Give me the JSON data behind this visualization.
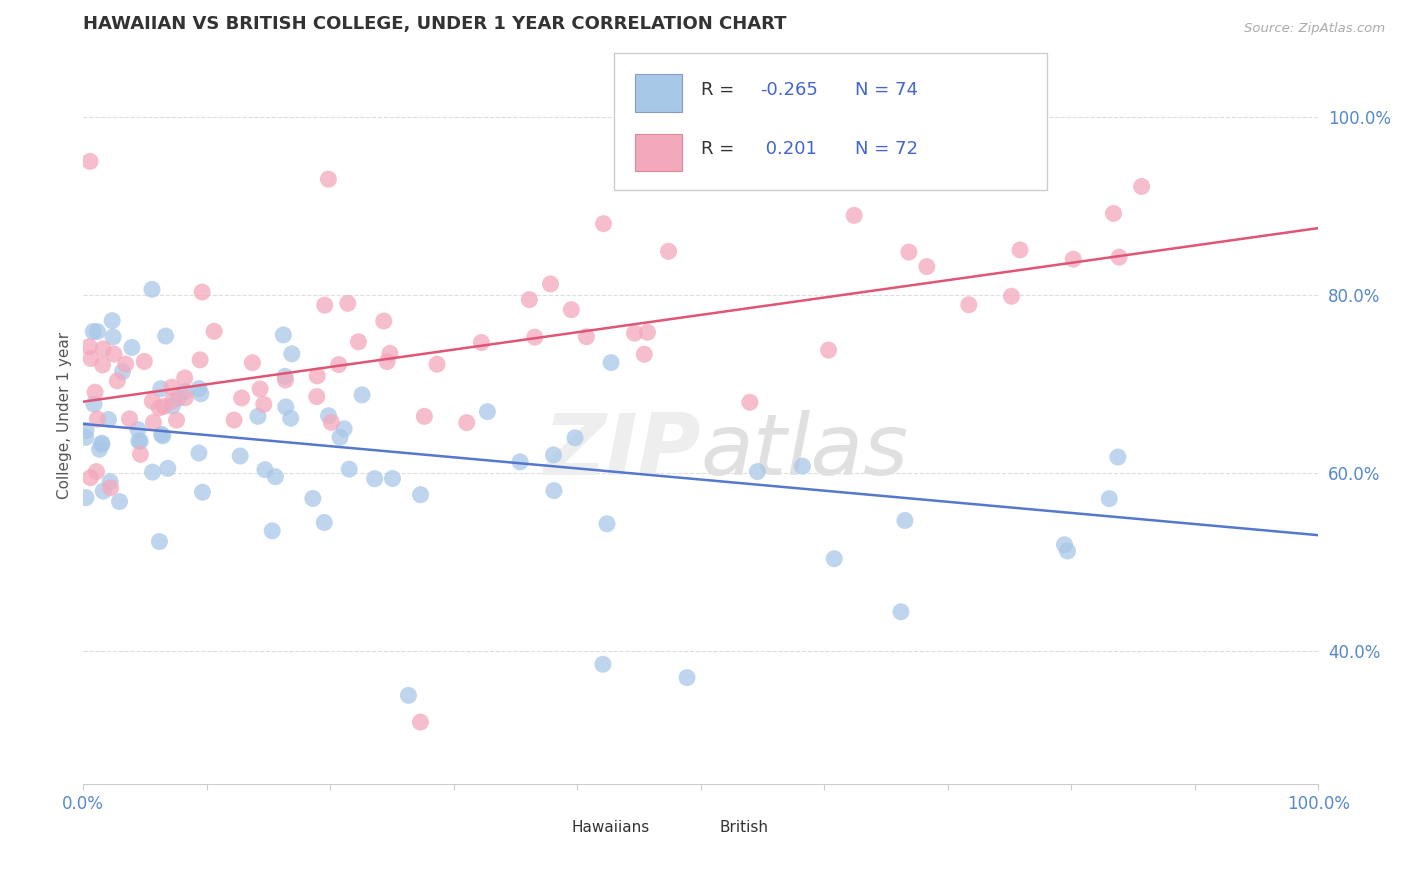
{
  "title": "HAWAIIAN VS BRITISH COLLEGE, UNDER 1 YEAR CORRELATION CHART",
  "source": "Source: ZipAtlas.com",
  "ylabel": "College, Under 1 year",
  "legend_hawaiians": "Hawaiians",
  "legend_british": "British",
  "R_hawaiians": -0.265,
  "N_hawaiians": 74,
  "R_british": 0.201,
  "N_british": 72,
  "color_hawaiians": "#a8c8e8",
  "color_british": "#f4a8bc",
  "color_line_hawaiians": "#5577cc",
  "color_line_british": "#e05575",
  "watermark_color": "#ececec",
  "ytick_color": "#5588cc",
  "xtick_color": "#5588cc",
  "title_color": "#333333",
  "source_color": "#aaaaaa",
  "grid_color": "#dddddd",
  "legend_text_color": "#333333",
  "legend_value_color": "#4466cc",
  "xlim": [
    0,
    100
  ],
  "ylim": [
    25,
    108
  ],
  "yticks": [
    40,
    60,
    80,
    100
  ],
  "ytick_labels": [
    "40.0%",
    "60.0%",
    "80.0%",
    "100.0%"
  ],
  "blue_line_x0": 0,
  "blue_line_y0": 65.5,
  "blue_line_x1": 100,
  "blue_line_y1": 53.0,
  "pink_line_x0": 0,
  "pink_line_y0": 68.0,
  "pink_line_x1": 100,
  "pink_line_y1": 87.5
}
